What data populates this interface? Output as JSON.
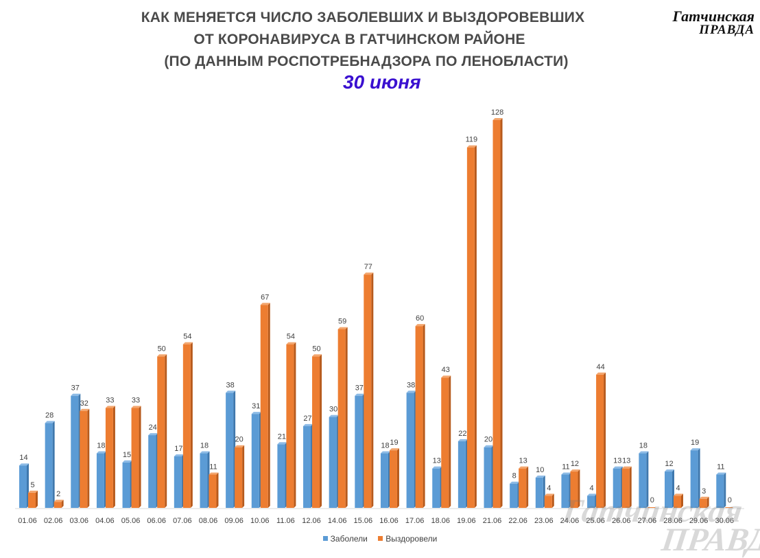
{
  "header": {
    "title_line1": "КАК МЕНЯЕТСЯ ЧИСЛО  ЗАБОЛЕВШИХ И ВЫЗДОРОВЕВШИХ",
    "title_line2": "ОТ КОРОНАВИРУСА В ГАТЧИНСКОМ РАЙОНЕ",
    "title_line3": "(ПО ДАННЫМ РОСПОТРЕБНАДЗОРА ПО ЛЕНОБЛАСТИ)",
    "date": "30 июня"
  },
  "logo": {
    "line1": "Гатчинская",
    "line2": "ПРАВДА"
  },
  "watermark": {
    "line1": "Гатчинская",
    "line2": "ПРАВДА"
  },
  "colors": {
    "sick": "#5b9bd5",
    "recovered": "#ed7d31",
    "date": "#3a10d0"
  },
  "chart_data": {
    "type": "bar",
    "categories": [
      "01.06",
      "02.06",
      "03.06",
      "04.06",
      "05.06",
      "06.06",
      "07.06",
      "08.06",
      "09.06",
      "10.06",
      "11.06",
      "12.06",
      "14.06",
      "15.06",
      "16.06",
      "17.06",
      "18.06",
      "19.06",
      "21.06",
      "22.06",
      "23.06",
      "24.06",
      "25.06",
      "26.06",
      "27.06",
      "28.06",
      "29.06",
      "30.06"
    ],
    "series": [
      {
        "name": "Заболели",
        "values": [
          14,
          28,
          37,
          18,
          15,
          24,
          17,
          18,
          38,
          31,
          21,
          27,
          30,
          37,
          18,
          38,
          13,
          22,
          20,
          8,
          10,
          11,
          4,
          13,
          18,
          12,
          19,
          11
        ]
      },
      {
        "name": "Выздоровели",
        "values": [
          5,
          2,
          32,
          33,
          33,
          50,
          54,
          11,
          20,
          67,
          54,
          50,
          59,
          77,
          19,
          60,
          43,
          119,
          128,
          13,
          4,
          12,
          44,
          13,
          0,
          4,
          3,
          0
        ]
      }
    ],
    "ylim": [
      0,
      128
    ],
    "grid": false,
    "data_labels": true,
    "style": "3d-clustered-column",
    "legend_position": "bottom"
  }
}
